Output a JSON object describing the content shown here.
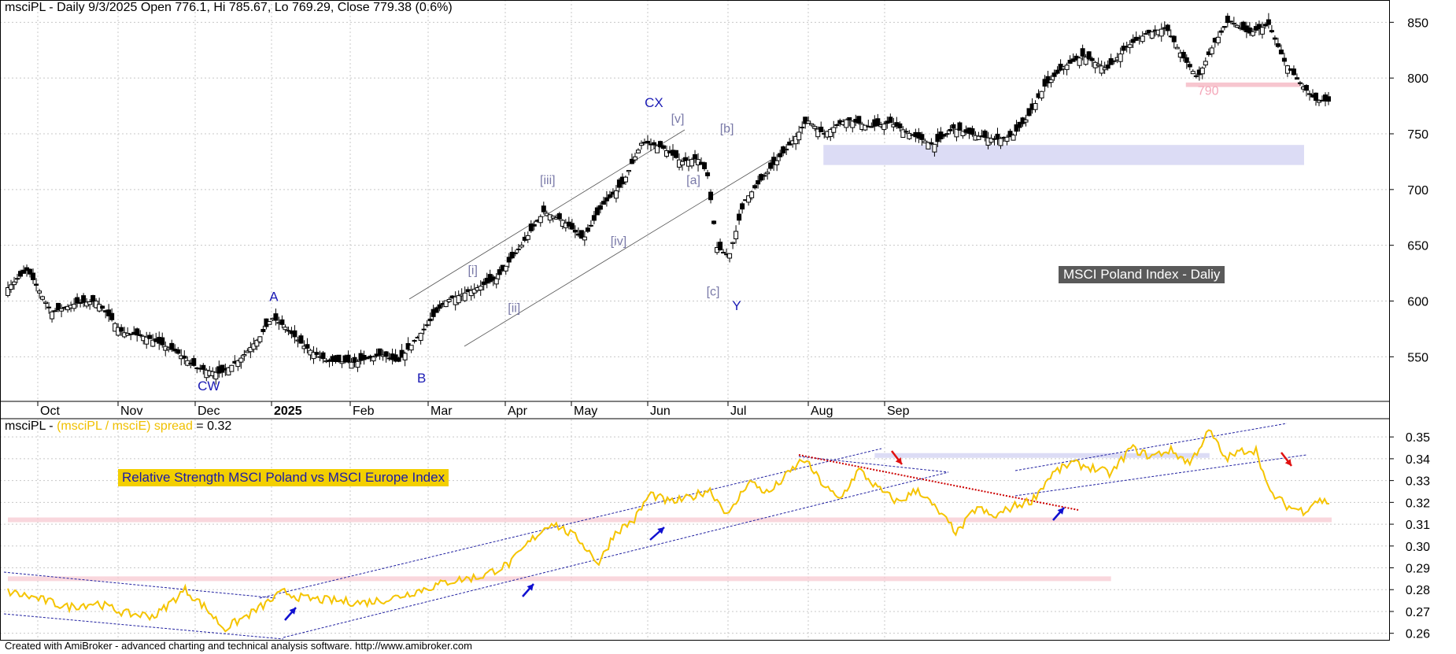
{
  "header": {
    "symbol": "msciPL",
    "main_title": "msciPL - Daily 9/3/2025 Open 776.1, Hi 785.67, Lo 769.29, Close 779.38 (0.6%)",
    "lower_prefix": "msciPL - ",
    "lower_formula": "(msciPL / msciE) spread",
    "lower_value": " = 0.32"
  },
  "footer": "Created with AmiBroker - advanced charting and technical analysis software. http://www.amibroker.com",
  "colors": {
    "candle": "#000000",
    "spread_line": "#f5c400",
    "wave_label": "#1a1ab4",
    "subwave_label": "#7a7aa8",
    "support_zone": "#dcdcf5",
    "resistance_zone": "#f7c6cf",
    "arrow_up": "#1010d0",
    "arrow_down": "#e01010",
    "channel": "#555555"
  },
  "chart_data": [
    {
      "type": "candlestick",
      "title": "MSCI Poland Index - Daliy",
      "x_labels": [
        "Oct",
        "Nov",
        "Dec",
        "2025",
        "Feb",
        "Mar",
        "Apr",
        "May",
        "Jun",
        "Jul",
        "Aug",
        "Sep"
      ],
      "y_ticks": [
        550,
        600,
        650,
        700,
        750,
        800,
        850
      ],
      "ylim": [
        510,
        870
      ],
      "last_bar": {
        "date": "9/3/2025",
        "open": 776.1,
        "high": 785.67,
        "low": 769.29,
        "close": 779.38,
        "change": "0.6%"
      },
      "close_path": [
        {
          "t": 0,
          "v": 612
        },
        {
          "t": 10,
          "v": 628
        },
        {
          "t": 22,
          "v": 590
        },
        {
          "t": 35,
          "v": 598
        },
        {
          "t": 45,
          "v": 600
        },
        {
          "t": 58,
          "v": 572
        },
        {
          "t": 70,
          "v": 568
        },
        {
          "t": 85,
          "v": 555
        },
        {
          "t": 96,
          "v": 540
        },
        {
          "t": 108,
          "v": 535
        },
        {
          "t": 118,
          "v": 548
        },
        {
          "t": 128,
          "v": 568
        },
        {
          "t": 134,
          "v": 585
        },
        {
          "t": 140,
          "v": 578
        },
        {
          "t": 150,
          "v": 560
        },
        {
          "t": 162,
          "v": 546
        },
        {
          "t": 176,
          "v": 545
        },
        {
          "t": 190,
          "v": 552
        },
        {
          "t": 198,
          "v": 545
        },
        {
          "t": 210,
          "v": 572
        },
        {
          "t": 222,
          "v": 600
        },
        {
          "t": 236,
          "v": 610
        },
        {
          "t": 248,
          "v": 620
        },
        {
          "t": 260,
          "v": 648
        },
        {
          "t": 272,
          "v": 680
        },
        {
          "t": 282,
          "v": 672
        },
        {
          "t": 292,
          "v": 655
        },
        {
          "t": 302,
          "v": 686
        },
        {
          "t": 312,
          "v": 705
        },
        {
          "t": 322,
          "v": 743
        },
        {
          "t": 332,
          "v": 738
        },
        {
          "t": 342,
          "v": 725
        },
        {
          "t": 350,
          "v": 728
        },
        {
          "t": 355,
          "v": 715
        },
        {
          "t": 360,
          "v": 648
        },
        {
          "t": 366,
          "v": 640
        },
        {
          "t": 374,
          "v": 690
        },
        {
          "t": 384,
          "v": 712
        },
        {
          "t": 396,
          "v": 738
        },
        {
          "t": 406,
          "v": 762
        },
        {
          "t": 414,
          "v": 750
        },
        {
          "t": 426,
          "v": 763
        },
        {
          "t": 438,
          "v": 756
        },
        {
          "t": 448,
          "v": 760
        },
        {
          "t": 460,
          "v": 748
        },
        {
          "t": 470,
          "v": 740
        },
        {
          "t": 480,
          "v": 755
        },
        {
          "t": 492,
          "v": 748
        },
        {
          "t": 502,
          "v": 745
        },
        {
          "t": 510,
          "v": 748
        },
        {
          "t": 518,
          "v": 765
        },
        {
          "t": 526,
          "v": 792
        },
        {
          "t": 536,
          "v": 810
        },
        {
          "t": 546,
          "v": 820
        },
        {
          "t": 558,
          "v": 808
        },
        {
          "t": 568,
          "v": 828
        },
        {
          "t": 578,
          "v": 840
        },
        {
          "t": 588,
          "v": 845
        },
        {
          "t": 596,
          "v": 820
        },
        {
          "t": 604,
          "v": 800
        },
        {
          "t": 612,
          "v": 830
        },
        {
          "t": 620,
          "v": 852
        },
        {
          "t": 630,
          "v": 840
        },
        {
          "t": 640,
          "v": 848
        },
        {
          "t": 648,
          "v": 815
        },
        {
          "t": 656,
          "v": 795
        },
        {
          "t": 664,
          "v": 780
        },
        {
          "t": 672,
          "v": 779
        }
      ],
      "wave_labels": [
        {
          "text": "CW",
          "t": 102,
          "v": 520
        },
        {
          "text": "A",
          "t": 135,
          "v": 600
        },
        {
          "text": "B",
          "t": 210,
          "v": 527
        },
        {
          "text": "CX",
          "t": 328,
          "v": 774
        },
        {
          "text": "Y",
          "t": 370,
          "v": 592
        }
      ],
      "subwave_labels": [
        {
          "text": "[i]",
          "t": 236,
          "v": 624
        },
        {
          "text": "[ii]",
          "t": 257,
          "v": 590
        },
        {
          "text": "[iii]",
          "t": 274,
          "v": 705
        },
        {
          "text": "[iv]",
          "t": 310,
          "v": 650
        },
        {
          "text": "[v]",
          "t": 340,
          "v": 760
        },
        {
          "text": "[a]",
          "t": 348,
          "v": 705
        },
        {
          "text": "[b]",
          "t": 365,
          "v": 751
        },
        {
          "text": "[c]",
          "t": 358,
          "v": 605
        }
      ],
      "annotations": [
        {
          "text": "790",
          "t": 604,
          "v": 785
        }
      ],
      "support_zone": {
        "from_t": 414,
        "to_t": 658,
        "low": 722,
        "high": 740
      },
      "resistance_zone": {
        "from_t": 598,
        "to_t": 656,
        "low": 792,
        "high": 796
      }
    },
    {
      "type": "line",
      "title": "Relative Strength MSCI Poland vs MSCI Europe Index",
      "series_name": "(msciPL / msciE) spread",
      "y_ticks": [
        0.26,
        0.27,
        0.28,
        0.29,
        0.3,
        0.31,
        0.32,
        0.33,
        0.34,
        0.35
      ],
      "ylim": [
        0.257,
        0.358
      ],
      "last_value": 0.32,
      "values_path": [
        {
          "t": 0,
          "v": 0.279
        },
        {
          "t": 15,
          "v": 0.276
        },
        {
          "t": 30,
          "v": 0.272
        },
        {
          "t": 45,
          "v": 0.274
        },
        {
          "t": 60,
          "v": 0.269
        },
        {
          "t": 75,
          "v": 0.268
        },
        {
          "t": 90,
          "v": 0.28
        },
        {
          "t": 100,
          "v": 0.272
        },
        {
          "t": 110,
          "v": 0.262
        },
        {
          "t": 125,
          "v": 0.27
        },
        {
          "t": 140,
          "v": 0.279
        },
        {
          "t": 150,
          "v": 0.276
        },
        {
          "t": 165,
          "v": 0.275
        },
        {
          "t": 180,
          "v": 0.274
        },
        {
          "t": 195,
          "v": 0.276
        },
        {
          "t": 210,
          "v": 0.28
        },
        {
          "t": 225,
          "v": 0.284
        },
        {
          "t": 240,
          "v": 0.286
        },
        {
          "t": 255,
          "v": 0.292
        },
        {
          "t": 266,
          "v": 0.303
        },
        {
          "t": 276,
          "v": 0.311
        },
        {
          "t": 290,
          "v": 0.303
        },
        {
          "t": 300,
          "v": 0.292
        },
        {
          "t": 308,
          "v": 0.306
        },
        {
          "t": 318,
          "v": 0.312
        },
        {
          "t": 326,
          "v": 0.324
        },
        {
          "t": 336,
          "v": 0.32
        },
        {
          "t": 346,
          "v": 0.322
        },
        {
          "t": 356,
          "v": 0.326
        },
        {
          "t": 366,
          "v": 0.314
        },
        {
          "t": 376,
          "v": 0.33
        },
        {
          "t": 386,
          "v": 0.324
        },
        {
          "t": 396,
          "v": 0.333
        },
        {
          "t": 404,
          "v": 0.34
        },
        {
          "t": 414,
          "v": 0.328
        },
        {
          "t": 422,
          "v": 0.321
        },
        {
          "t": 432,
          "v": 0.335
        },
        {
          "t": 442,
          "v": 0.326
        },
        {
          "t": 452,
          "v": 0.32
        },
        {
          "t": 462,
          "v": 0.326
        },
        {
          "t": 472,
          "v": 0.316
        },
        {
          "t": 482,
          "v": 0.306
        },
        {
          "t": 492,
          "v": 0.318
        },
        {
          "t": 500,
          "v": 0.313
        },
        {
          "t": 510,
          "v": 0.318
        },
        {
          "t": 520,
          "v": 0.321
        },
        {
          "t": 530,
          "v": 0.333
        },
        {
          "t": 540,
          "v": 0.338
        },
        {
          "t": 550,
          "v": 0.336
        },
        {
          "t": 560,
          "v": 0.333
        },
        {
          "t": 570,
          "v": 0.345
        },
        {
          "t": 580,
          "v": 0.341
        },
        {
          "t": 590,
          "v": 0.344
        },
        {
          "t": 600,
          "v": 0.338
        },
        {
          "t": 610,
          "v": 0.353
        },
        {
          "t": 618,
          "v": 0.34
        },
        {
          "t": 628,
          "v": 0.344
        },
        {
          "t": 634,
          "v": 0.344
        },
        {
          "t": 640,
          "v": 0.325
        },
        {
          "t": 650,
          "v": 0.318
        },
        {
          "t": 658,
          "v": 0.316
        },
        {
          "t": 664,
          "v": 0.321
        },
        {
          "t": 672,
          "v": 0.32
        }
      ],
      "support_lines": [
        {
          "from_t": 0,
          "to_t": 672,
          "v": 0.312
        },
        {
          "from_t": 0,
          "to_t": 560,
          "v": 0.285
        }
      ]
    }
  ]
}
